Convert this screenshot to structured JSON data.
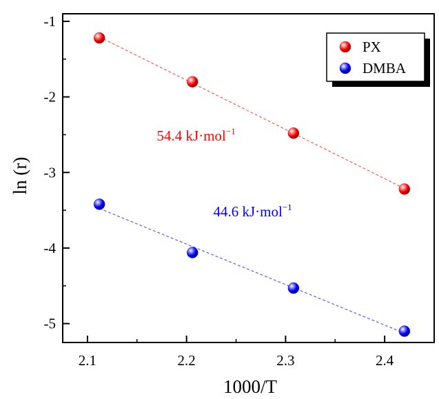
{
  "chart_data": {
    "type": "scatter",
    "xlabel": "1000/T",
    "ylabel": "ln (r)",
    "xlim": [
      2.075,
      2.45
    ],
    "ylim": [
      -5.25,
      -0.9
    ],
    "x_ticks": [
      2.1,
      2.2,
      2.3,
      2.4
    ],
    "x_tick_labels": [
      "2.1",
      "2.2",
      "2.3",
      "2.4"
    ],
    "y_ticks": [
      -1,
      -2,
      -3,
      -4,
      -5
    ],
    "y_tick_labels": [
      "-1",
      "-2",
      "-3",
      "-4",
      "-5"
    ],
    "grid": false,
    "legend_position": "top-right",
    "series": [
      {
        "name": "PX",
        "color": "#ff0000",
        "line_color": "#ff5a4a",
        "x": [
          2.112,
          2.206,
          2.308,
          2.42
        ],
        "y": [
          -1.22,
          -1.8,
          -2.48,
          -3.22
        ],
        "trend": "dashed-linear-fit"
      },
      {
        "name": "DMBA",
        "color": "#0000ff",
        "line_color": "#5a5aff",
        "x": [
          2.112,
          2.206,
          2.308,
          2.42
        ],
        "y": [
          -3.42,
          -4.06,
          -4.53,
          -5.1
        ],
        "trend": "dashed-linear-fit"
      }
    ],
    "annotations": [
      {
        "text": "54.4 kJ·mol",
        "superscript": "−1",
        "color": "#ff0000",
        "x": 2.17,
        "y": -2.58
      },
      {
        "text": "44.6 kJ·mol",
        "superscript": "−1",
        "color": "#0000ff",
        "x": 2.227,
        "y": -3.58
      }
    ]
  }
}
